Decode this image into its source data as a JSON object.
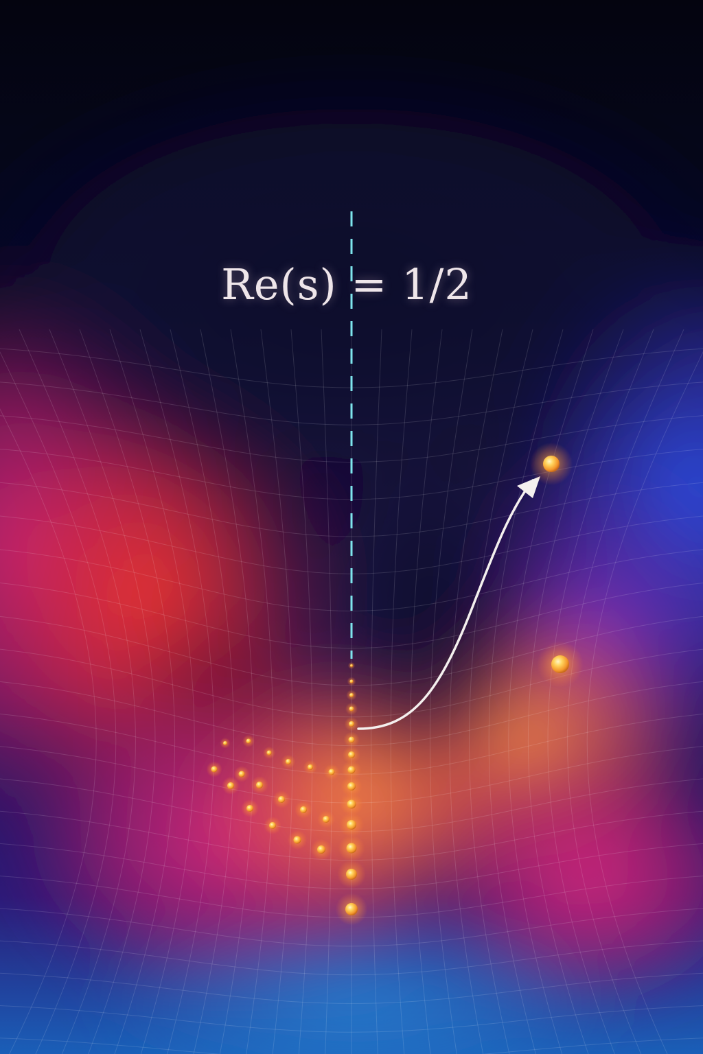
{
  "annotation": {
    "label": "Re(s) = 1/2"
  },
  "colors": {
    "background_top": "#04040f",
    "magenta": "#d2267a",
    "red": "#e0302e",
    "orange": "#ff8a3a",
    "blue": "#2c4ad8",
    "violet": "#7a2fc0",
    "critical_line": "#7fe6ee",
    "zero_points": "#ffc84a",
    "arrow": "#f4f0ee"
  },
  "icons": {
    "arrow": "curved-arrow-icon",
    "point": "glowing-sphere-icon"
  }
}
